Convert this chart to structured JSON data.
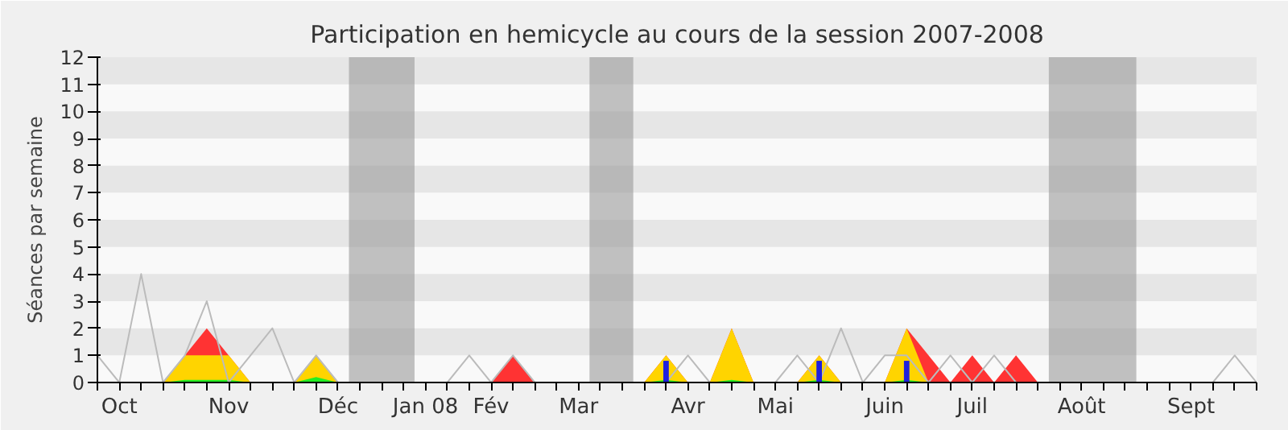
{
  "chart_data": {
    "type": "area",
    "title": "Participation en hemicycle au cours de la session 2007-2008",
    "ylabel": "Séances par semaine",
    "categories": [
      null,
      "Oct",
      null,
      null,
      null,
      null,
      "Nov",
      null,
      null,
      null,
      null,
      "Déc",
      null,
      null,
      null,
      "Jan 08",
      null,
      null,
      "Fév",
      null,
      null,
      null,
      "Mar",
      null,
      null,
      null,
      null,
      "Avr",
      null,
      null,
      null,
      "Mai",
      null,
      null,
      null,
      null,
      "Juin",
      null,
      null,
      null,
      "Juil",
      null,
      null,
      null,
      null,
      "Août",
      null,
      null,
      null,
      null,
      "Sept",
      null,
      null,
      null
    ],
    "series": [
      {
        "color": "#ff3333",
        "values": [
          null,
          null,
          null,
          0,
          1,
          2,
          1,
          0,
          0,
          0,
          1,
          0,
          0,
          0,
          0,
          0,
          0,
          0,
          0,
          1,
          0,
          0,
          0,
          0,
          0,
          0,
          1,
          0,
          0,
          2,
          0,
          0,
          0,
          1,
          0,
          0,
          0,
          2,
          1,
          0,
          1,
          0,
          1,
          0,
          null,
          null,
          null,
          null,
          null,
          null,
          null,
          null,
          null,
          null
        ]
      },
      {
        "color": "#ffd400",
        "values": [
          null,
          null,
          null,
          0,
          1,
          1,
          1,
          0,
          0,
          0,
          1,
          0,
          0,
          0,
          0,
          0,
          0,
          0,
          0,
          0,
          0,
          0,
          0,
          0,
          0,
          0,
          1,
          0,
          0,
          2,
          0,
          0,
          0,
          1,
          0,
          0,
          0,
          2,
          0,
          null,
          null,
          null,
          null,
          null,
          null,
          null,
          null,
          null,
          null,
          null,
          null,
          null,
          null,
          null
        ]
      },
      {
        "color": "#22ee22",
        "values": [
          null,
          null,
          null,
          0,
          0.1,
          0.1,
          0.1,
          0,
          0,
          0,
          0.2,
          0,
          0,
          0,
          0,
          0,
          0,
          0,
          0,
          0,
          0,
          0,
          0,
          0,
          0,
          0,
          0.1,
          0,
          0,
          0.1,
          0,
          0,
          0,
          0.1,
          0,
          0,
          0,
          0.1,
          0,
          null,
          null,
          null,
          null,
          null,
          null,
          null,
          null,
          null,
          null,
          null,
          null,
          null,
          null,
          null
        ]
      },
      {
        "type": "line",
        "color": "#bbbbbb",
        "values": [
          1,
          0,
          4,
          0,
          1,
          3,
          0,
          1,
          2,
          0,
          1,
          0,
          0,
          0,
          0,
          0,
          0,
          1,
          0,
          1,
          0,
          0,
          0,
          0,
          0,
          0,
          0,
          1,
          0,
          0,
          0,
          0,
          1,
          0,
          2,
          0,
          1,
          1,
          0,
          1,
          0,
          1,
          0,
          0,
          0,
          0,
          0,
          0,
          0,
          0,
          0,
          0,
          1,
          0
        ]
      },
      {
        "type": "bar",
        "color": "#2020dd",
        "values": [
          null,
          null,
          null,
          null,
          null,
          null,
          null,
          null,
          null,
          null,
          null,
          null,
          null,
          null,
          null,
          null,
          null,
          null,
          null,
          null,
          null,
          null,
          null,
          null,
          null,
          null,
          0.8,
          null,
          null,
          null,
          null,
          null,
          null,
          0.8,
          null,
          null,
          null,
          0.8,
          null,
          null,
          null,
          null,
          null,
          null,
          null,
          null,
          null,
          null,
          null,
          null,
          null,
          null,
          null,
          null
        ]
      }
    ],
    "ylim": [
      0,
      12
    ],
    "yticks": [
      0,
      1,
      2,
      3,
      4,
      5,
      6,
      7,
      8,
      9,
      10,
      11,
      12
    ],
    "bands": [
      {
        "axis": "y",
        "from": 1,
        "to": 2,
        "color": "#e6e6e6"
      },
      {
        "axis": "y",
        "from": 3,
        "to": 4,
        "color": "#e6e6e6"
      },
      {
        "axis": "y",
        "from": 5,
        "to": 6,
        "color": "#e6e6e6"
      },
      {
        "axis": "y",
        "from": 7,
        "to": 8,
        "color": "#e6e6e6"
      },
      {
        "axis": "y",
        "from": 9,
        "to": 10,
        "color": "#e6e6e6"
      },
      {
        "axis": "y",
        "from": 11,
        "to": 12,
        "color": "#e6e6e6"
      }
    ]
  }
}
